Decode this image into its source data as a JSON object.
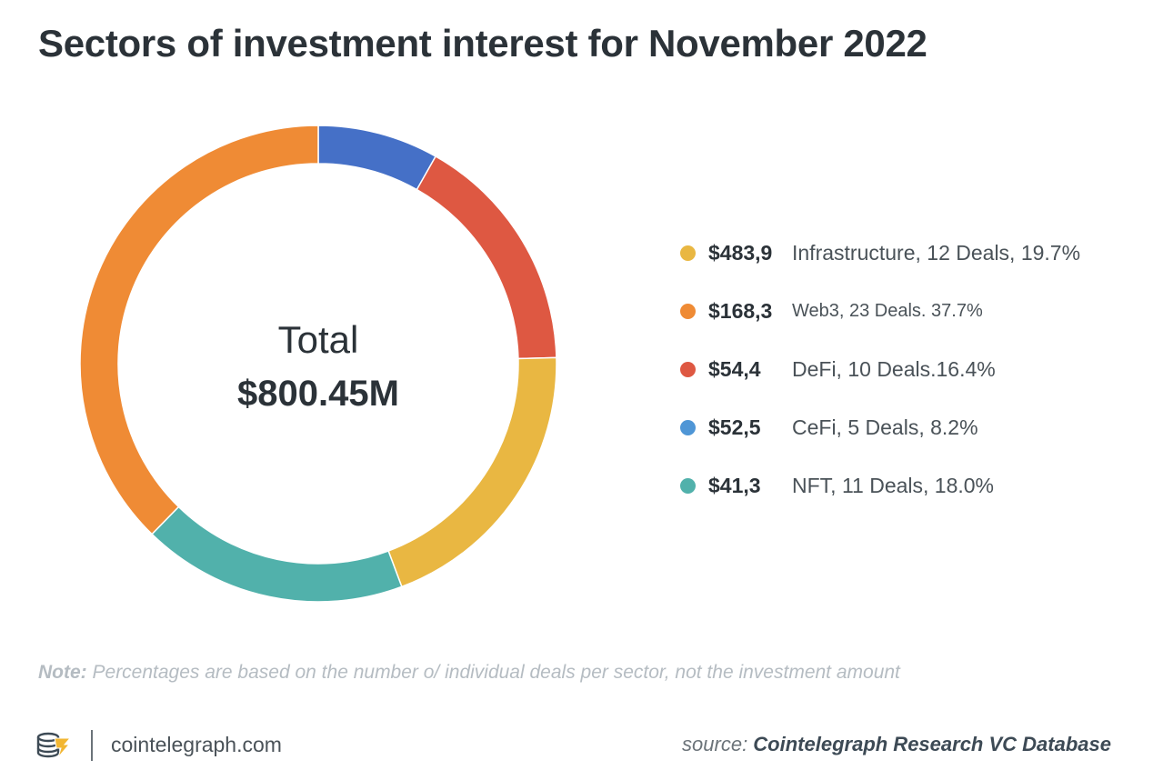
{
  "title": "Sectors of investment interest for November 2022",
  "chart_data": {
    "type": "pie",
    "title": "Sectors of investment interest for November 2022",
    "center_label": "Total",
    "center_value": "$800.45M",
    "segments": [
      {
        "label": "CeFi",
        "percent": 8.2,
        "color": "#4570c7"
      },
      {
        "label": "DeFi",
        "percent": 16.4,
        "color": "#de5842"
      },
      {
        "label": "Infrastructure",
        "percent": 19.7,
        "color": "#e9b742"
      },
      {
        "label": "NFT",
        "percent": 18.0,
        "color": "#51b1ab"
      },
      {
        "label": "Web3",
        "percent": 37.7,
        "color": "#ef8b35"
      }
    ],
    "legend": [
      {
        "amount": "$483,9",
        "text": "Infrastructure, 12 Deals, 19.7%",
        "color": "#e9b742"
      },
      {
        "amount": "$168,3",
        "text": "Web3, 23 Deals. 37.7%",
        "color": "#ef8b35"
      },
      {
        "amount": "$54,4",
        "text": "DeFi, 10 Deals.16.4%",
        "color": "#de5842"
      },
      {
        "amount": "$52,5",
        "text": "CeFi, 5 Deals, 8.2%",
        "color": "#4f96d6"
      },
      {
        "amount": "$41,3",
        "text": "NFT, 11 Deals, 18.0%",
        "color": "#51b1ab"
      }
    ],
    "legend_position": "right"
  },
  "note": {
    "label": "Note:",
    "text": " Percentages are based on the number o/ individual deals per sector, not the investment amount"
  },
  "footer": {
    "logo_icon": "cointelegraph-logo-icon",
    "site": "cointelegraph.com",
    "source_prefix": "source: ",
    "source_name": "Cointelegraph Research VC Database"
  }
}
